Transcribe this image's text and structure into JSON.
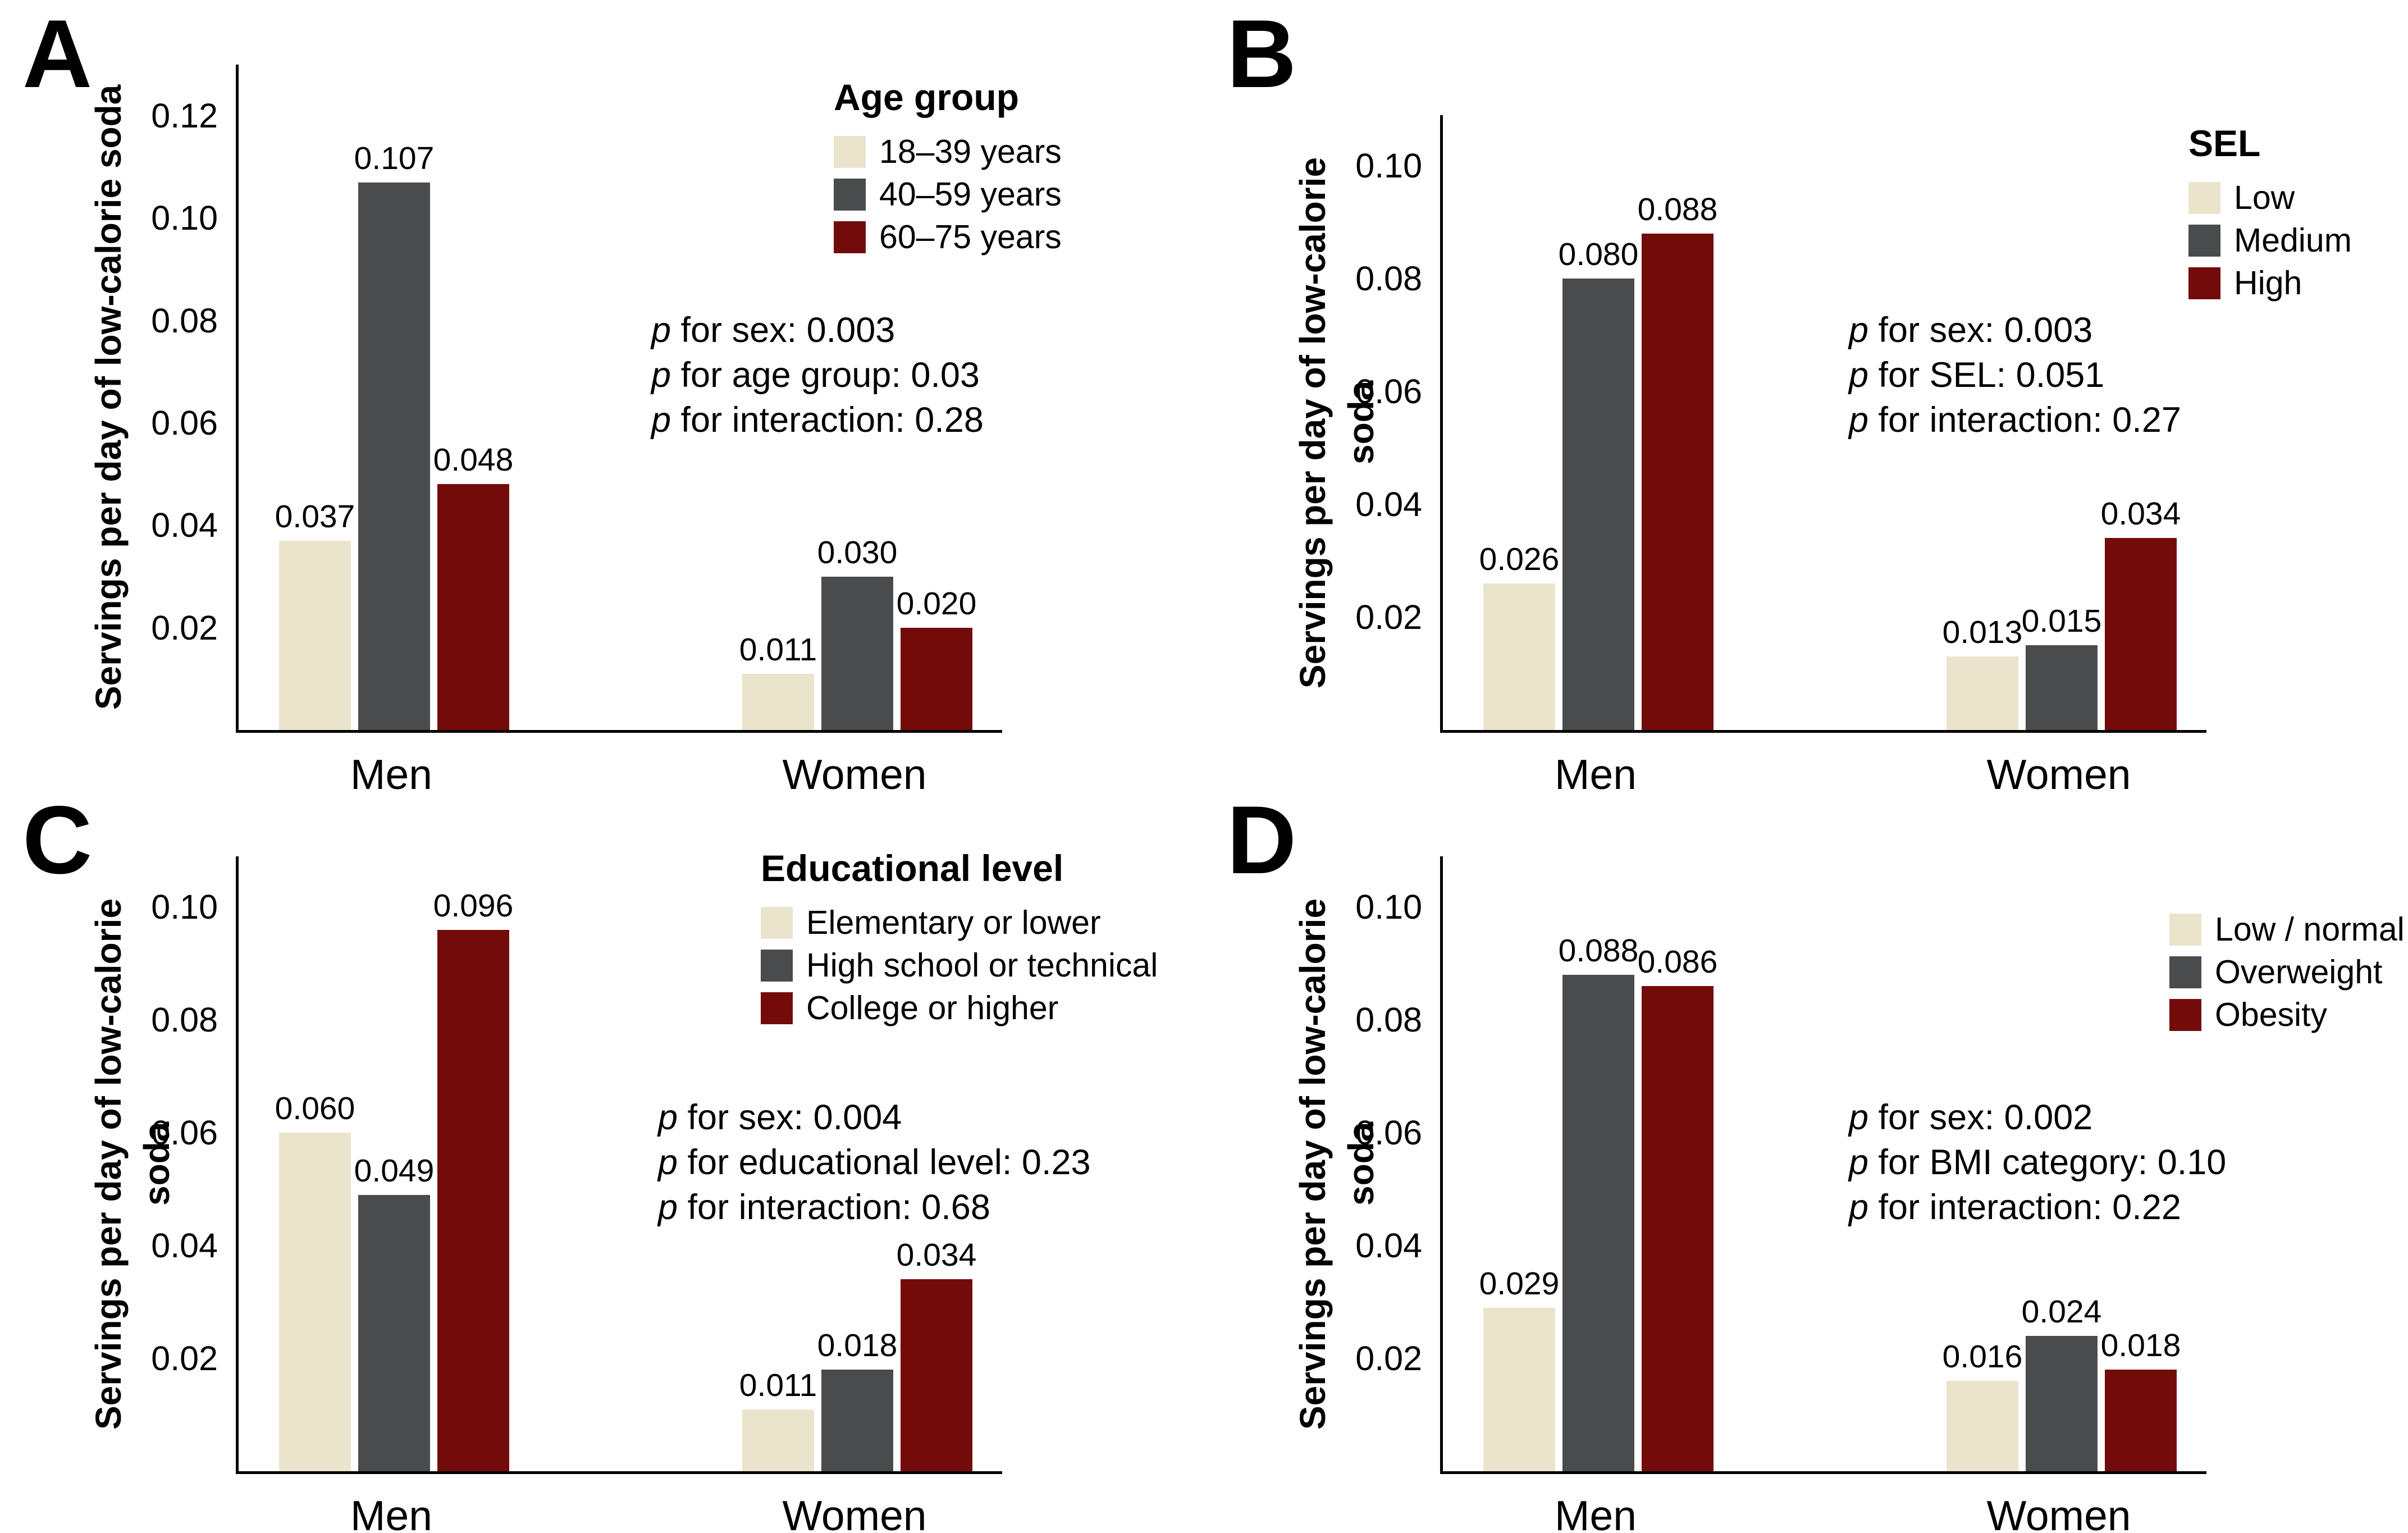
{
  "chart_data": [
    {
      "type": "bar",
      "panel": "A",
      "ylabel": "Servings per day of low-calorie soda",
      "categories": [
        "Men",
        "Women"
      ],
      "legend_title": "Age group",
      "legend_position": "top-right",
      "grid": false,
      "yticks": [
        "0.02",
        "0.04",
        "0.06",
        "0.08",
        "0.10",
        "0.12"
      ],
      "ylim": [
        0,
        0.13
      ],
      "series": [
        {
          "name": "18–39 years",
          "color": "#EBE4CD",
          "values": [
            0.037,
            0.011
          ],
          "labels": [
            "0.037",
            "0.011"
          ]
        },
        {
          "name": "40–59 years",
          "color": "#494B4D",
          "values": [
            0.107,
            0.03
          ],
          "labels": [
            "0.107",
            "0.030"
          ]
        },
        {
          "name": "60–75 years",
          "color": "#740B0B",
          "values": [
            0.048,
            0.02
          ],
          "labels": [
            "0.048",
            "0.020"
          ]
        }
      ],
      "annotations": [
        {
          "prefix": "p",
          "text": " for sex: 0.003"
        },
        {
          "prefix": "p",
          "text": " for age group: 0.03"
        },
        {
          "prefix": "p",
          "text": " for interaction: 0.28"
        }
      ]
    },
    {
      "type": "bar",
      "panel": "B",
      "ylabel": "Servings per day of low-calorie soda",
      "categories": [
        "Men",
        "Women"
      ],
      "legend_title": "SEL",
      "legend_position": "top-right",
      "grid": false,
      "yticks": [
        "0.02",
        "0.04",
        "0.06",
        "0.08",
        "0.10"
      ],
      "ylim": [
        0,
        0.11
      ],
      "series": [
        {
          "name": "Low",
          "color": "#EBE4CD",
          "values": [
            0.026,
            0.013
          ],
          "labels": [
            "0.026",
            "0.013"
          ]
        },
        {
          "name": "Medium",
          "color": "#494B4D",
          "values": [
            0.08,
            0.015
          ],
          "labels": [
            "0.080",
            "0.015"
          ]
        },
        {
          "name": "High",
          "color": "#740B0B",
          "values": [
            0.088,
            0.034
          ],
          "labels": [
            "0.088",
            "0.034"
          ]
        }
      ],
      "annotations": [
        {
          "prefix": "p",
          "text": " for sex: 0.003"
        },
        {
          "prefix": "p",
          "text": " for SEL: 0.051"
        },
        {
          "prefix": "p",
          "text": " for interaction: 0.27"
        }
      ]
    },
    {
      "type": "bar",
      "panel": "C",
      "ylabel": "Servings per day of low-calorie soda",
      "categories": [
        "Men",
        "Women"
      ],
      "legend_title": "Educational level",
      "legend_position": "top-right",
      "grid": false,
      "yticks": [
        "0.02",
        "0.04",
        "0.06",
        "0.08",
        "0.10"
      ],
      "ylim": [
        0,
        0.11
      ],
      "series": [
        {
          "name": "Elementary or lower",
          "color": "#EBE4CD",
          "values": [
            0.06,
            0.011
          ],
          "labels": [
            "0.060",
            "0.011"
          ]
        },
        {
          "name": "High school or technical",
          "color": "#494B4D",
          "values": [
            0.049,
            0.018
          ],
          "labels": [
            "0.049",
            "0.018"
          ]
        },
        {
          "name": "College or higher",
          "color": "#740B0B",
          "values": [
            0.096,
            0.034
          ],
          "labels": [
            "0.096",
            "0.034"
          ]
        }
      ],
      "annotations": [
        {
          "prefix": "p",
          "text": " for sex: 0.004"
        },
        {
          "prefix": "p",
          "text": " for educational level: 0.23"
        },
        {
          "prefix": "p",
          "text": " for interaction: 0.68"
        }
      ]
    },
    {
      "type": "bar",
      "panel": "D",
      "ylabel": "Servings per day of low-calorie soda",
      "categories": [
        "Men",
        "Women"
      ],
      "legend_title": "",
      "legend_position": "top-right",
      "grid": false,
      "yticks": [
        "0.02",
        "0.04",
        "0.06",
        "0.08",
        "0.10"
      ],
      "ylim": [
        0,
        0.11
      ],
      "series": [
        {
          "name": "Low / normal",
          "color": "#EBE4CD",
          "values": [
            0.029,
            0.016
          ],
          "labels": [
            "0.029",
            "0.016"
          ]
        },
        {
          "name": "Overweight",
          "color": "#494B4D",
          "values": [
            0.088,
            0.024
          ],
          "labels": [
            "0.088",
            "0.024"
          ]
        },
        {
          "name": "Obesity",
          "color": "#740B0B",
          "values": [
            0.086,
            0.018
          ],
          "labels": [
            "0.086",
            "0.018"
          ]
        }
      ],
      "annotations": [
        {
          "prefix": "p",
          "text": " for sex: 0.002"
        },
        {
          "prefix": "p",
          "text": " for BMI category: 0.10"
        },
        {
          "prefix": "p",
          "text": " for interaction: 0.22"
        }
      ]
    }
  ]
}
